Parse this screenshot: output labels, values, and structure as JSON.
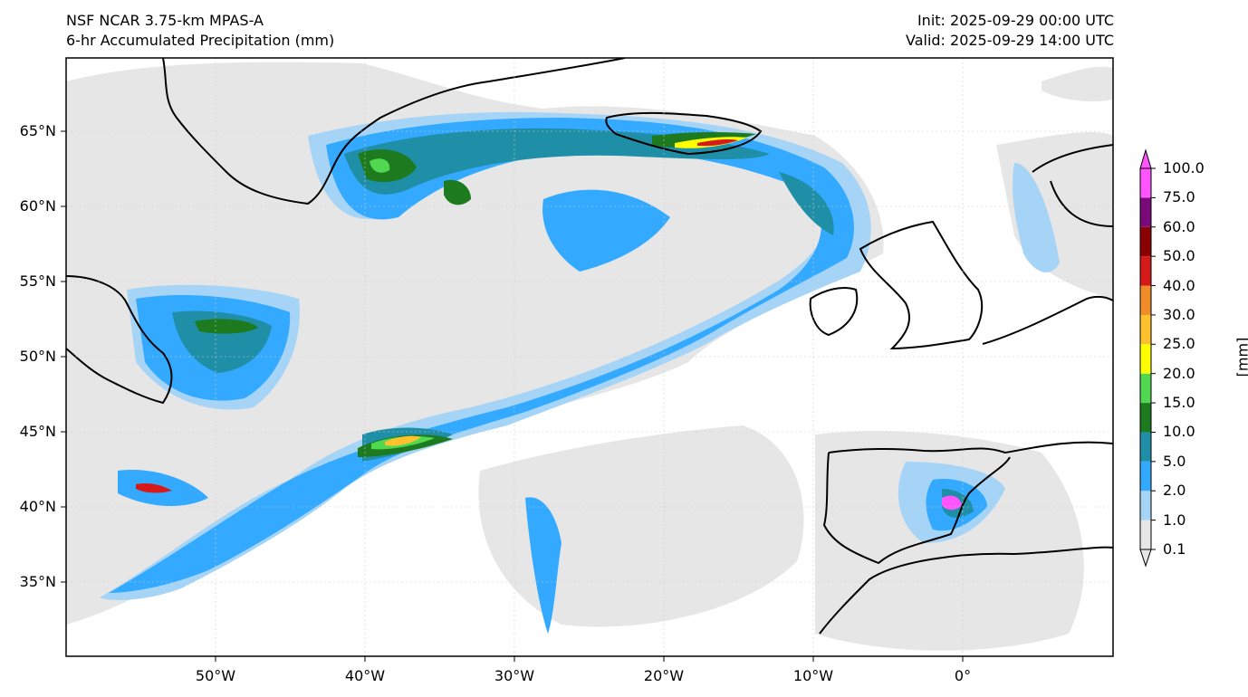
{
  "header": {
    "model": "NSF NCAR 3.75-km MPAS-A",
    "field": "6-hr Accumulated Precipitation (mm)",
    "init": "Init: 2025-09-29 00:00 UTC",
    "valid": "Valid: 2025-09-29 14:00 UTC"
  },
  "map": {
    "lat_labels": [
      "65°N",
      "60°N",
      "55°N",
      "50°N",
      "45°N",
      "40°N",
      "35°N"
    ],
    "lon_labels": [
      "50°W",
      "40°W",
      "30°W",
      "20°W",
      "10°W",
      "0°"
    ]
  },
  "colorbar": {
    "unit": "[mm]",
    "levels": [
      "0.1",
      "1.0",
      "2.0",
      "5.0",
      "10.0",
      "15.0",
      "20.0",
      "25.0",
      "30.0",
      "40.0",
      "50.0",
      "60.0",
      "75.0",
      "100.0"
    ],
    "colors": [
      "#e6e6e6",
      "#a6d4f7",
      "#33aaff",
      "#1f8fa8",
      "#1e7a1e",
      "#50d850",
      "#ffff00",
      "#ffc12e",
      "#f08c2a",
      "#d61a1a",
      "#8b0000",
      "#7a0a7a",
      "#ff55ff"
    ]
  }
}
